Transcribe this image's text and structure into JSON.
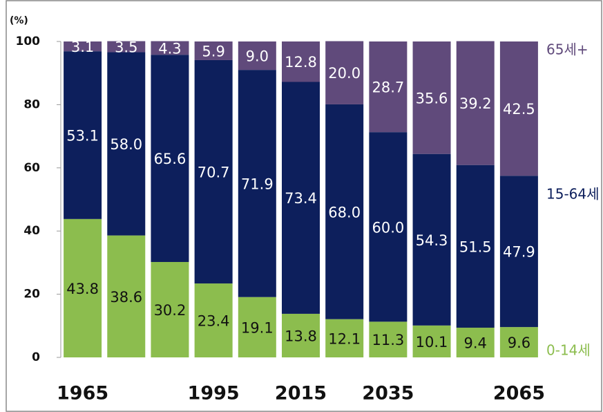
{
  "chart_data": {
    "type": "stacked_bar",
    "y_unit": "(%)",
    "categories": [
      "1965",
      null,
      null,
      "1995",
      null,
      "2015",
      null,
      "2035",
      null,
      null,
      "2065"
    ],
    "series": [
      {
        "name": "0-14세",
        "color": "#8cbd4e",
        "label_color": "#111111",
        "values": [
          43.8,
          38.6,
          30.2,
          23.4,
          19.1,
          13.8,
          12.1,
          11.3,
          10.1,
          9.4,
          9.6
        ],
        "value_labels": [
          "43.8",
          "38.6",
          "30.2",
          "23.4",
          "19.1",
          "13.8",
          "12.1",
          "11.3",
          "10.1",
          "9.4",
          "9.6"
        ]
      },
      {
        "name": "15-64세",
        "color": "#0d1f5c",
        "label_color": "#ffffff",
        "values": [
          53.1,
          58.0,
          65.6,
          70.7,
          71.9,
          73.4,
          68.0,
          60.0,
          54.3,
          51.5,
          47.9
        ],
        "value_labels": [
          "53.1",
          "58.0",
          "65.6",
          "70.7",
          "71.9",
          "73.4",
          "68.0",
          "60.0",
          "54.3",
          "51.5",
          "47.9"
        ]
      },
      {
        "name": "65세+",
        "color": "#604a7b",
        "label_color": "#ffffff",
        "values": [
          3.1,
          3.5,
          4.3,
          5.9,
          9.0,
          12.8,
          20.0,
          28.7,
          35.6,
          39.2,
          42.5
        ],
        "value_labels": [
          "3.1",
          "3.5",
          "4.3",
          "5.9",
          "9.0",
          "12.8",
          "20.0",
          "28.7",
          "35.6",
          "39.2",
          "42.5"
        ]
      }
    ],
    "ylim": [
      0,
      100
    ],
    "yticks": [
      0,
      20,
      40,
      60,
      80,
      100
    ]
  }
}
